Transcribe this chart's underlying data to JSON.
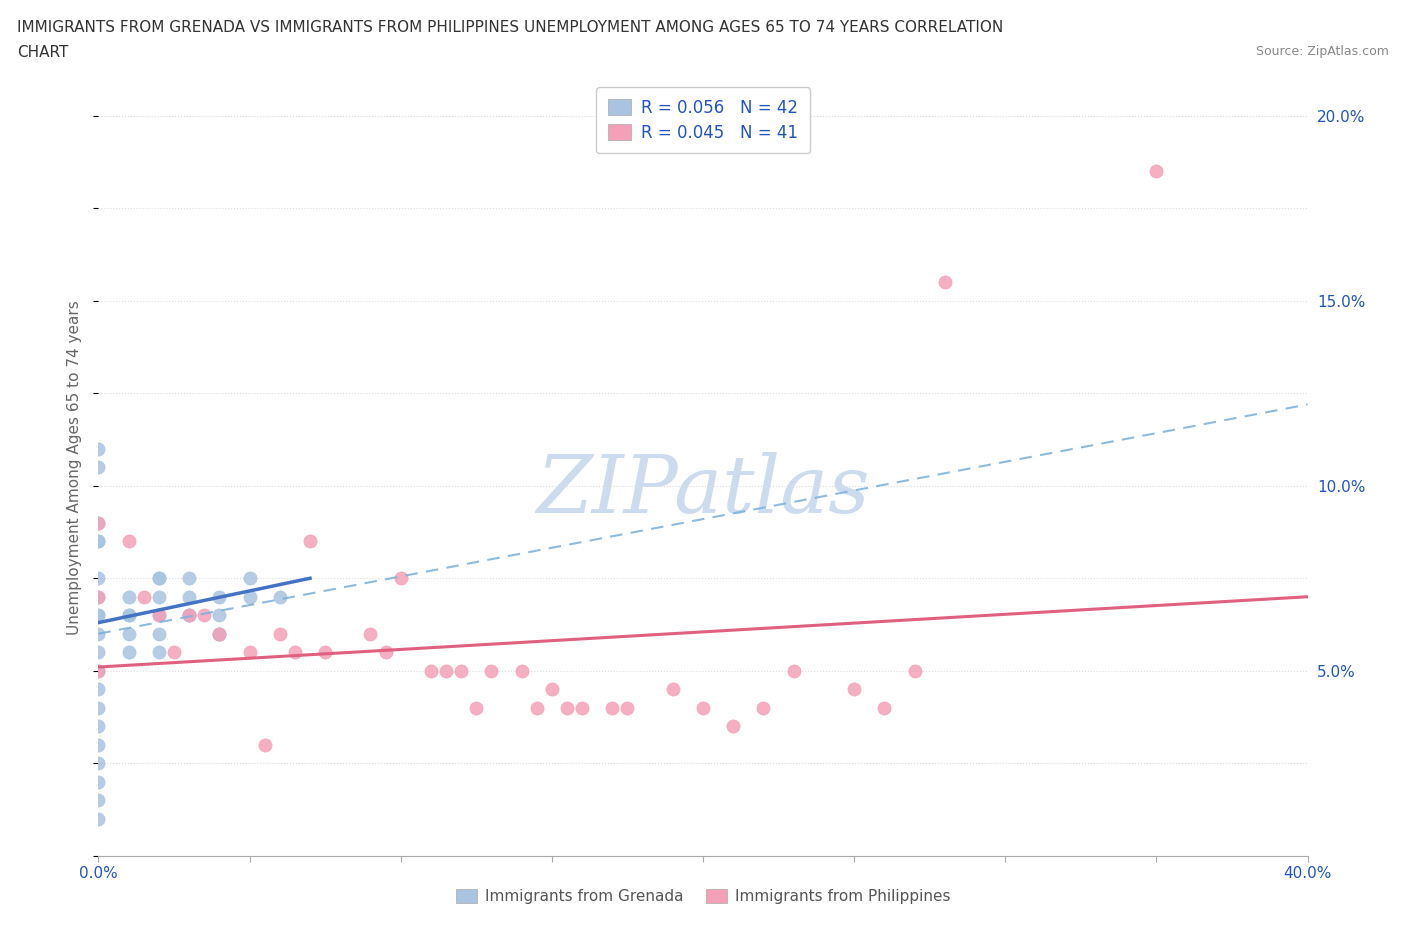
{
  "title_line1": "IMMIGRANTS FROM GRENADA VS IMMIGRANTS FROM PHILIPPINES UNEMPLOYMENT AMONG AGES 65 TO 74 YEARS CORRELATION",
  "title_line2": "CHART",
  "source_text": "Source: ZipAtlas.com",
  "ylabel": "Unemployment Among Ages 65 to 74 years",
  "xlim": [
    0.0,
    0.4
  ],
  "ylim": [
    0.0,
    0.21
  ],
  "xtick_positions": [
    0.0,
    0.05,
    0.1,
    0.15,
    0.2,
    0.25,
    0.3,
    0.35,
    0.4
  ],
  "xtick_labels": [
    "0.0%",
    "",
    "",
    "",
    "",
    "",
    "",
    "",
    "40.0%"
  ],
  "ytick_positions": [
    0.0,
    0.05,
    0.1,
    0.15,
    0.2
  ],
  "ytick_labels_right": [
    "",
    "5.0%",
    "10.0%",
    "15.0%",
    "20.0%"
  ],
  "R_grenada": 0.056,
  "N_grenada": 42,
  "R_philippines": 0.045,
  "N_philippines": 41,
  "grenada_scatter_color": "#a8c4e0",
  "philippines_scatter_color": "#f4a0b8",
  "grenada_line_color": "#4472c4",
  "philippines_line_color": "#e06080",
  "grenada_dash_color": "#7ab0d8",
  "watermark_color": "#ccdcee",
  "legend_text_color": "#2255bb",
  "background_color": "#ffffff",
  "grid_color": "#dddddd",
  "legend_box_color": "#cccccc",
  "grenada_x": [
    0.0,
    0.0,
    0.0,
    0.0,
    0.0,
    0.0,
    0.0,
    0.0,
    0.0,
    0.0,
    0.0,
    0.0,
    0.0,
    0.0,
    0.0,
    0.0,
    0.0,
    0.0,
    0.0,
    0.0,
    0.01,
    0.01,
    0.01,
    0.01,
    0.01,
    0.02,
    0.02,
    0.02,
    0.02,
    0.02,
    0.02,
    0.03,
    0.03,
    0.03,
    0.03,
    0.04,
    0.04,
    0.04,
    0.04,
    0.05,
    0.05,
    0.06
  ],
  "grenada_y": [
    0.11,
    0.105,
    0.09,
    0.085,
    0.085,
    0.075,
    0.07,
    0.065,
    0.065,
    0.06,
    0.055,
    0.05,
    0.045,
    0.04,
    0.035,
    0.03,
    0.025,
    0.02,
    0.015,
    0.01,
    0.07,
    0.065,
    0.065,
    0.06,
    0.055,
    0.075,
    0.075,
    0.07,
    0.065,
    0.06,
    0.055,
    0.075,
    0.07,
    0.065,
    0.065,
    0.07,
    0.065,
    0.06,
    0.06,
    0.075,
    0.07,
    0.07
  ],
  "philippines_x": [
    0.0,
    0.0,
    0.0,
    0.01,
    0.015,
    0.02,
    0.025,
    0.03,
    0.035,
    0.04,
    0.05,
    0.055,
    0.06,
    0.065,
    0.07,
    0.075,
    0.09,
    0.095,
    0.1,
    0.11,
    0.115,
    0.12,
    0.125,
    0.13,
    0.14,
    0.145,
    0.15,
    0.155,
    0.16,
    0.17,
    0.175,
    0.19,
    0.2,
    0.21,
    0.22,
    0.23,
    0.25,
    0.26,
    0.27,
    0.28,
    0.35
  ],
  "philippines_y": [
    0.09,
    0.07,
    0.05,
    0.085,
    0.07,
    0.065,
    0.055,
    0.065,
    0.065,
    0.06,
    0.055,
    0.03,
    0.06,
    0.055,
    0.085,
    0.055,
    0.06,
    0.055,
    0.075,
    0.05,
    0.05,
    0.05,
    0.04,
    0.05,
    0.05,
    0.04,
    0.045,
    0.04,
    0.04,
    0.04,
    0.04,
    0.045,
    0.04,
    0.035,
    0.04,
    0.05,
    0.045,
    0.04,
    0.05,
    0.155,
    0.185
  ],
  "grenada_trendline_x0": 0.0,
  "grenada_trendline_x1": 0.07,
  "grenada_trendline_y0": 0.063,
  "grenada_trendline_y1": 0.075,
  "dashed_line_x0": 0.0,
  "dashed_line_x1": 0.4,
  "dashed_line_y0": 0.06,
  "dashed_line_y1": 0.122,
  "philippines_trendline_x0": 0.0,
  "philippines_trendline_x1": 0.4,
  "philippines_trendline_y0": 0.051,
  "philippines_trendline_y1": 0.07
}
